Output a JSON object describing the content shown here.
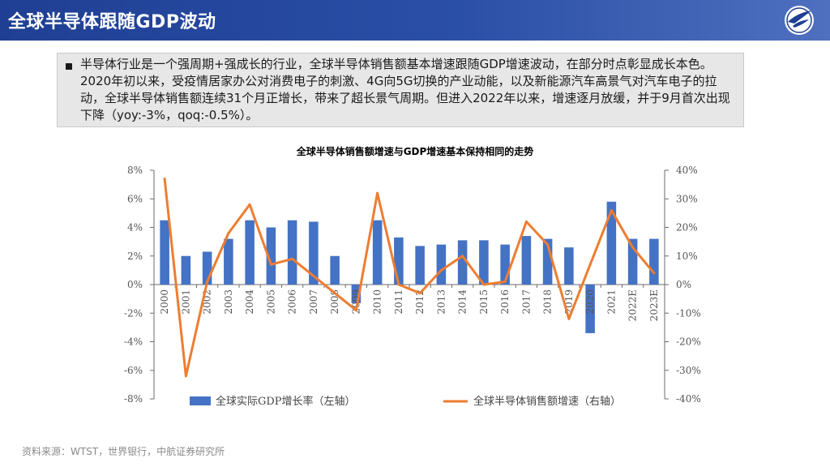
{
  "header": {
    "title": "全球半导体跟随GDP波动"
  },
  "summary": {
    "text": "半导体行业是一个强周期+强成长的行业，全球半导体销售额基本增速跟随GDP增速波动，在部分时点彰显成长本色。2020年初以来，受疫情居家办公对消费电子的刺激、4G向5G切换的产业动能，以及新能源汽车高景气对汽车电子的拉动，全球半导体销售额连续31个月正增长，带来了超长景气周期。但进入2022年以来，增速逐月放缓，并于9月首次出现下降（yoy:-3%，qoq:-0.5%）。"
  },
  "chart_data": {
    "type": "bar",
    "title": "全球半导体销售额增速与GDP增速基本保持相同的走势",
    "categories": [
      "2000",
      "2001",
      "2002",
      "2003",
      "2004",
      "2005",
      "2006",
      "2007",
      "2008",
      "2009",
      "2010",
      "2011",
      "2012",
      "2013",
      "2014",
      "2015",
      "2016",
      "2017",
      "2018",
      "2019",
      "2020",
      "2021",
      "2022E",
      "2023E"
    ],
    "left_axis": {
      "ticks": [
        "8%",
        "6%",
        "4%",
        "2%",
        "0%",
        "-2%",
        "-4%",
        "-6%",
        "-8%"
      ],
      "ylim": [
        -8,
        8
      ]
    },
    "right_axis": {
      "ticks": [
        "40%",
        "30%",
        "20%",
        "10%",
        "0%",
        "-10%",
        "-20%",
        "-30%",
        "-40%"
      ],
      "ylim": [
        -40,
        40
      ]
    },
    "series": [
      {
        "name": "全球实际GDP增长率（左轴）",
        "type": "bar",
        "axis": "left",
        "color": "#4472c4",
        "values": [
          4.5,
          2.0,
          2.3,
          3.2,
          4.5,
          4.0,
          4.5,
          4.4,
          2.0,
          -1.3,
          4.5,
          3.3,
          2.7,
          2.8,
          3.1,
          3.1,
          2.8,
          3.4,
          3.2,
          2.6,
          -3.4,
          5.8,
          3.2,
          3.2
        ]
      },
      {
        "name": "全球半导体销售额增速（右轴）",
        "type": "line",
        "axis": "right",
        "color": "#ed7d31",
        "values": [
          37,
          -32,
          1,
          18,
          28,
          7,
          9,
          3,
          -3,
          -9,
          32,
          0,
          -3,
          5,
          10,
          0,
          1,
          22,
          14,
          -12,
          7,
          26,
          13,
          4
        ]
      }
    ],
    "legend_position": "bottom",
    "grid": false
  },
  "footer": {
    "source": "资料来源：WTST，世界银行，中航证券研究所"
  }
}
